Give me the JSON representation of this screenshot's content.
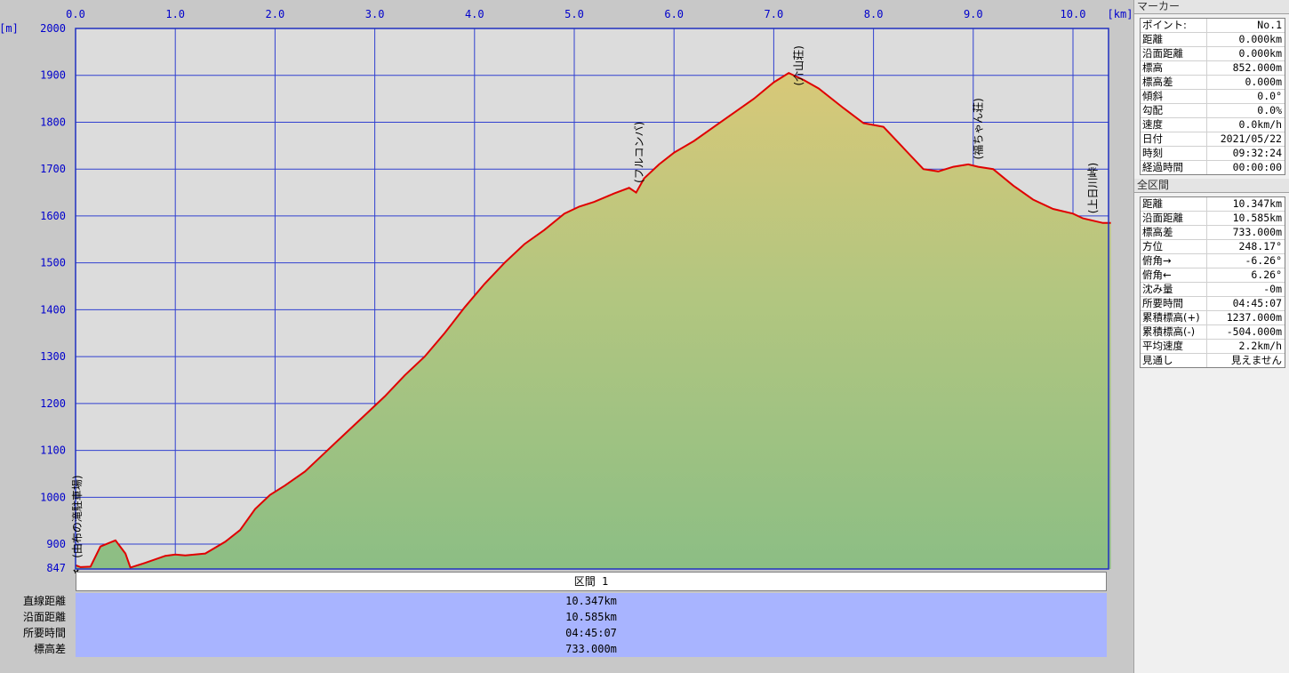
{
  "chart_data": {
    "type": "area",
    "x_unit": "[km]",
    "y_unit": "[m]",
    "x_ticks": [
      "0.0",
      "1.0",
      "2.0",
      "3.0",
      "4.0",
      "5.0",
      "6.0",
      "7.0",
      "8.0",
      "9.0",
      "10.0"
    ],
    "y_ticks": [
      "2000",
      "1900",
      "1800",
      "1700",
      "1600",
      "1500",
      "1400",
      "1300",
      "1200",
      "1100",
      "1000",
      "900"
    ],
    "y_min_label": "847",
    "xlim": [
      0,
      10.4
    ],
    "ylim": [
      847,
      2000
    ],
    "x": [
      0.0,
      0.05,
      0.15,
      0.25,
      0.4,
      0.5,
      0.55,
      0.7,
      0.9,
      1.0,
      1.1,
      1.3,
      1.5,
      1.65,
      1.8,
      1.95,
      2.1,
      2.3,
      2.5,
      2.7,
      2.9,
      3.1,
      3.3,
      3.5,
      3.7,
      3.9,
      4.1,
      4.3,
      4.5,
      4.7,
      4.9,
      5.05,
      5.2,
      5.4,
      5.55,
      5.62,
      5.7,
      5.85,
      6.0,
      6.2,
      6.4,
      6.6,
      6.8,
      7.0,
      7.15,
      7.3,
      7.45,
      7.7,
      7.9,
      8.1,
      8.3,
      8.5,
      8.65,
      8.8,
      8.95,
      9.05,
      9.2,
      9.4,
      9.6,
      9.8,
      10.0,
      10.1,
      10.2,
      10.3,
      10.38
    ],
    "y": [
      855,
      851,
      852,
      895,
      908,
      880,
      850,
      860,
      875,
      878,
      876,
      880,
      905,
      930,
      975,
      1005,
      1025,
      1055,
      1095,
      1135,
      1175,
      1215,
      1260,
      1300,
      1350,
      1405,
      1455,
      1500,
      1540,
      1570,
      1605,
      1620,
      1630,
      1648,
      1660,
      1650,
      1680,
      1710,
      1735,
      1760,
      1790,
      1820,
      1850,
      1885,
      1905,
      1890,
      1872,
      1830,
      1798,
      1790,
      1745,
      1700,
      1695,
      1705,
      1710,
      1705,
      1700,
      1665,
      1635,
      1615,
      1605,
      1595,
      1590,
      1585,
      1585
    ],
    "series": [
      {
        "name": "",
        "color": "#e00000"
      }
    ],
    "annotations": [
      {
        "text": "(由布の滝駐車場)",
        "x": 0.0,
        "y": 855
      },
      {
        "text": "(フルコンバ)",
        "x": 5.65,
        "y": 1655
      },
      {
        "text": "(介山荘)",
        "x": 7.25,
        "y": 1905
      },
      {
        "text": "(福ちゃん荘)",
        "x": 9.05,
        "y": 1705
      },
      {
        "text": "(上日川峠)",
        "x": 10.2,
        "y": 1590
      }
    ],
    "grid": true
  },
  "section": {
    "header": "区間 1",
    "rows": [
      {
        "label": "直線距離",
        "value": "10.347km"
      },
      {
        "label": "沿面距離",
        "value": "10.585km"
      },
      {
        "label": "所要時間",
        "value": "04:45:07"
      },
      {
        "label": "標高差",
        "value": "733.000m"
      }
    ]
  },
  "marker": {
    "title": "マーカー",
    "rows": [
      {
        "key": "ポイント:",
        "value": "No.1"
      },
      {
        "key": "距離",
        "value": "0.000km"
      },
      {
        "key": "沿面距離",
        "value": "0.000km"
      },
      {
        "key": "標高",
        "value": "852.000m"
      },
      {
        "key": "標高差",
        "value": "0.000m"
      },
      {
        "key": "傾斜",
        "value": "0.0°"
      },
      {
        "key": "勾配",
        "value": "0.0%"
      },
      {
        "key": "速度",
        "value": "0.0km/h"
      },
      {
        "key": "日付",
        "value": "2021/05/22"
      },
      {
        "key": "時刻",
        "value": "09:32:24"
      },
      {
        "key": "経過時間",
        "value": "00:00:00"
      }
    ]
  },
  "total": {
    "title": "全区間",
    "rows": [
      {
        "key": "距離",
        "value": "10.347km"
      },
      {
        "key": "沿面距離",
        "value": "10.585km"
      },
      {
        "key": "標高差",
        "value": "733.000m"
      },
      {
        "key": "方位",
        "value": "248.17°"
      },
      {
        "key": "俯角→",
        "value": "-6.26°"
      },
      {
        "key": "俯角←",
        "value": "6.26°"
      },
      {
        "key": "沈み量",
        "value": "-0m"
      },
      {
        "key": "所要時間",
        "value": "04:45:07"
      },
      {
        "key": "累積標高(+)",
        "value": "1237.000m"
      },
      {
        "key": "累積標高(-)",
        "value": "-504.000m"
      },
      {
        "key": "平均速度",
        "value": "2.2km/h"
      },
      {
        "key": "見通し",
        "value": "見えません"
      }
    ]
  }
}
